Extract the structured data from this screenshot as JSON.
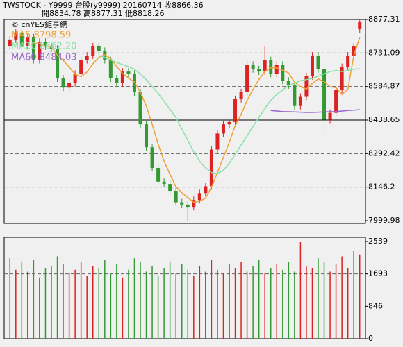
{
  "header": {
    "line1": "TWSTOCK - Y9999  台股(y9999) 20160714    收8866.36",
    "line2": "開8834.78    高8877.31    低8818.26"
  },
  "chart_data": [
    {
      "type": "candlestick",
      "credit": "© cnYES鉅亨網",
      "ylim": [
        7999.98,
        8877.31
      ],
      "yticks": [
        8877.31,
        8731.09,
        8584.87,
        8438.65,
        8292.42,
        8146.2,
        7999.98
      ],
      "grid_style": [
        "none",
        "dashed",
        "dashed",
        "solid",
        "dashed",
        "dashed",
        "none"
      ],
      "up_color": "#dd2222",
      "down_color": "#339933",
      "open": [
        8760,
        8790,
        8820,
        8760,
        8800,
        8700,
        8780,
        8760,
        8750,
        8620,
        8580,
        8600,
        8640,
        8700,
        8720,
        8760,
        8740,
        8700,
        8620,
        8600,
        8650,
        8640,
        8560,
        8420,
        8320,
        8230,
        8170,
        8160,
        8130,
        8080,
        8070,
        8060,
        8090,
        8120,
        8150,
        8310,
        8380,
        8420,
        8430,
        8530,
        8560,
        8680,
        8660,
        8650,
        8700,
        8640,
        8680,
        8610,
        8590,
        8500,
        8540,
        8630,
        8720,
        8660,
        8440,
        8470,
        8570,
        8670,
        8720,
        8834.78
      ],
      "high": [
        8805,
        8835,
        8835,
        8815,
        8815,
        8795,
        8795,
        8775,
        8765,
        8635,
        8615,
        8655,
        8715,
        8735,
        8775,
        8775,
        8755,
        8715,
        8635,
        8665,
        8665,
        8655,
        8575,
        8435,
        8335,
        8245,
        8185,
        8175,
        8145,
        8095,
        8085,
        8105,
        8135,
        8165,
        8325,
        8395,
        8435,
        8445,
        8545,
        8575,
        8695,
        8695,
        8675,
        8760,
        8715,
        8695,
        8695,
        8625,
        8605,
        8555,
        8645,
        8735,
        8735,
        8675,
        8485,
        8585,
        8685,
        8735,
        8775,
        8877.31
      ],
      "low": [
        8745,
        8775,
        8745,
        8745,
        8685,
        8685,
        8745,
        8735,
        8605,
        8565,
        8565,
        8585,
        8625,
        8685,
        8705,
        8725,
        8685,
        8605,
        8585,
        8585,
        8625,
        8545,
        8405,
        8305,
        8215,
        8155,
        8145,
        8115,
        8065,
        8055,
        8000,
        8045,
        8075,
        8105,
        8135,
        8295,
        8365,
        8405,
        8415,
        8515,
        8545,
        8645,
        8635,
        8635,
        8625,
        8625,
        8595,
        8575,
        8485,
        8485,
        8525,
        8615,
        8645,
        8380,
        8425,
        8455,
        8555,
        8655,
        8705,
        8818.26
      ],
      "close": [
        8790,
        8820,
        8760,
        8800,
        8700,
        8780,
        8760,
        8750,
        8620,
        8580,
        8600,
        8640,
        8700,
        8720,
        8760,
        8740,
        8700,
        8620,
        8600,
        8650,
        8640,
        8560,
        8420,
        8320,
        8230,
        8170,
        8160,
        8130,
        8080,
        8070,
        8060,
        8090,
        8120,
        8150,
        8310,
        8380,
        8420,
        8430,
        8530,
        8560,
        8680,
        8660,
        8650,
        8700,
        8640,
        8680,
        8610,
        8590,
        8500,
        8540,
        8630,
        8720,
        8660,
        8440,
        8470,
        8570,
        8670,
        8720,
        8760,
        8866.36
      ],
      "series": [
        {
          "name": "MA5 8798.59",
          "color": "#f0a030",
          "values": [
            null,
            null,
            null,
            null,
            8774,
            8772,
            8760,
            8758,
            8722,
            8698,
            8670,
            8638,
            8628,
            8648,
            8684,
            8712,
            8724,
            8708,
            8672,
            8642,
            8622,
            8604,
            8560,
            8500,
            8420,
            8334,
            8260,
            8202,
            8148,
            8122,
            8100,
            8080,
            8084,
            8098,
            8146,
            8210,
            8276,
            8342,
            8414,
            8464,
            8524,
            8572,
            8616,
            8650,
            8666,
            8666,
            8656,
            8644,
            8604,
            8584,
            8574,
            8598,
            8618,
            8606,
            8584,
            8580,
            8550,
            8574,
            8720,
            8798.59
          ]
        },
        {
          "name": "MA20 8662.20",
          "color": "#88e0a8",
          "values": [
            null,
            null,
            null,
            null,
            null,
            null,
            null,
            null,
            null,
            null,
            null,
            null,
            null,
            null,
            null,
            8720,
            8712,
            8700,
            8690,
            8680,
            8672,
            8660,
            8640,
            8615,
            8585,
            8555,
            8520,
            8485,
            8450,
            8400,
            8350,
            8300,
            8260,
            8230,
            8210,
            8205,
            8220,
            8250,
            8290,
            8330,
            8370,
            8410,
            8450,
            8490,
            8525,
            8550,
            8570,
            8590,
            8600,
            8610,
            8615,
            8620,
            8630,
            8640,
            8650,
            8655,
            8650,
            8655,
            8660,
            8662.2
          ]
        },
        {
          "name": "MA60 8484.03",
          "color": "#9966cc",
          "values": [
            null,
            null,
            null,
            null,
            null,
            null,
            null,
            null,
            null,
            null,
            null,
            null,
            null,
            null,
            null,
            null,
            null,
            null,
            null,
            null,
            null,
            null,
            null,
            null,
            null,
            null,
            null,
            null,
            null,
            null,
            null,
            null,
            null,
            null,
            null,
            null,
            null,
            null,
            null,
            null,
            null,
            null,
            null,
            null,
            8480,
            8478,
            8476,
            8475,
            8474,
            8473,
            8472,
            8472,
            8473,
            8474,
            8475,
            8476,
            8478,
            8480,
            8482,
            8484.03
          ]
        }
      ]
    },
    {
      "type": "volume",
      "ylim": [
        0,
        2539
      ],
      "yticks": [
        2539,
        1693,
        846,
        0
      ],
      "grid_style": [
        "none",
        "dashed",
        "none",
        "none"
      ],
      "values": [
        2100,
        1800,
        2000,
        1750,
        2050,
        1600,
        1850,
        1900,
        2150,
        1950,
        1700,
        1800,
        2000,
        1650,
        1900,
        1850,
        2050,
        1700,
        1950,
        1600,
        1800,
        2100,
        2000,
        1750,
        1900,
        1650,
        1850,
        2000,
        1700,
        1950,
        1800,
        1650,
        1900,
        1750,
        2050,
        1800,
        1700,
        1950,
        1850,
        2000,
        1750,
        1900,
        2050,
        1700,
        1850,
        1950,
        1800,
        2000,
        1750,
        2539,
        1900,
        1850,
        2100,
        2000,
        1750,
        1950,
        2150,
        1850,
        2300,
        2200
      ]
    }
  ]
}
